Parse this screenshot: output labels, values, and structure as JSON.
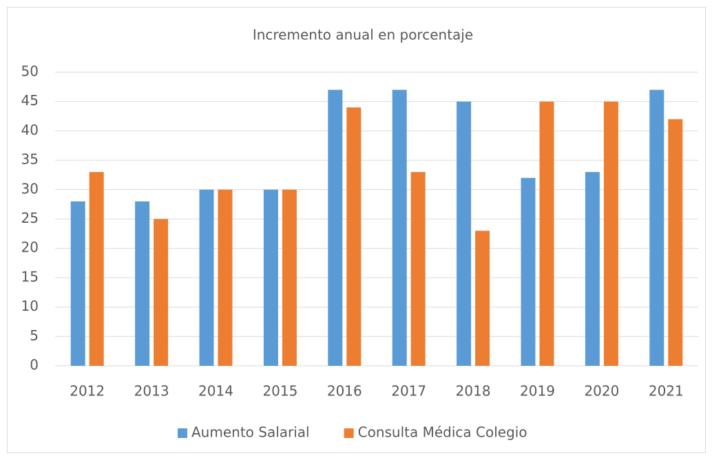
{
  "chart_data": {
    "type": "bar",
    "title": "Incremento anual en porcentaje",
    "categories": [
      "2012",
      "2013",
      "2014",
      "2015",
      "2016",
      "2017",
      "2018",
      "2019",
      "2020",
      "2021"
    ],
    "series": [
      {
        "name": "Aumento Salarial",
        "color": "#5b9bd5",
        "values": [
          28,
          28,
          30,
          30,
          47,
          47,
          45,
          32,
          33,
          47
        ]
      },
      {
        "name": "Consulta Médica Colegio",
        "color": "#ed7d31",
        "values": [
          33,
          25,
          30,
          30,
          44,
          33,
          23,
          45,
          45,
          42
        ]
      }
    ],
    "ylim": [
      0,
      50
    ],
    "yticks": [
      0,
      5,
      10,
      15,
      20,
      25,
      30,
      35,
      40,
      45,
      50
    ],
    "grid": true,
    "legend": "bottom"
  }
}
